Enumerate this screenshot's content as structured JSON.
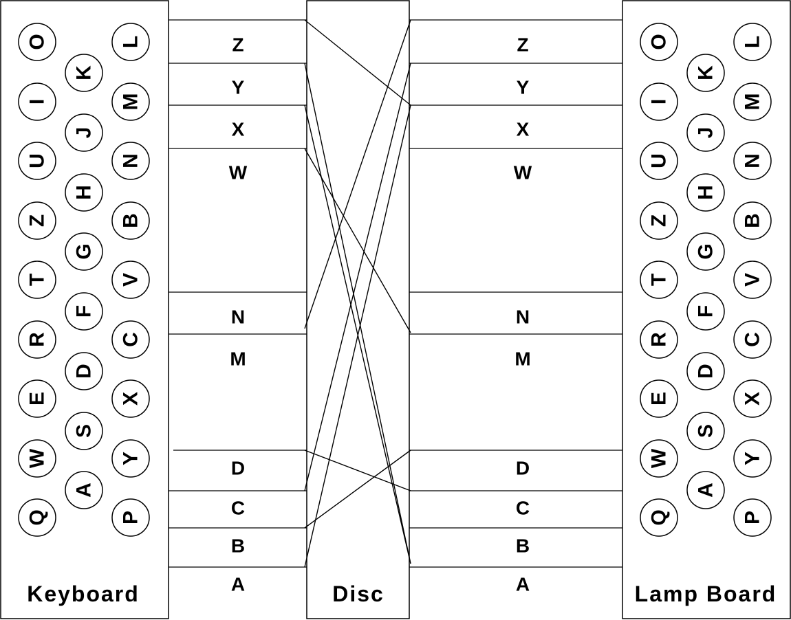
{
  "keyboard": {
    "title": "Keyboard",
    "col1": [
      "O",
      "I",
      "U",
      "Z",
      "T",
      "R",
      "E",
      "W",
      "Q"
    ],
    "col2": [
      "K",
      "J",
      "H",
      "G",
      "F",
      "D",
      "S",
      "A"
    ],
    "col3": [
      "L",
      "M",
      "N",
      "B",
      "V",
      "C",
      "X",
      "Y",
      "P"
    ]
  },
  "lampboard": {
    "title": "Lamp Board",
    "col1": [
      "O",
      "I",
      "U",
      "Z",
      "T",
      "R",
      "E",
      "W",
      "Q"
    ],
    "col2": [
      "K",
      "J",
      "H",
      "G",
      "F",
      "D",
      "S",
      "A"
    ],
    "col3": [
      "L",
      "M",
      "N",
      "B",
      "V",
      "C",
      "X",
      "Y",
      "P"
    ]
  },
  "disc": {
    "title": "Disc"
  },
  "wire_labels": [
    "Z",
    "Y",
    "X",
    "W",
    "N",
    "M",
    "D",
    "C",
    "B",
    "A"
  ],
  "wiring": [
    {
      "in": "Z",
      "out": "X"
    },
    {
      "in": "Y",
      "out": "A"
    },
    {
      "in": "X",
      "out": "A"
    },
    {
      "in": "W",
      "out": "M"
    },
    {
      "in": "N",
      "out": "Z"
    },
    {
      "in": "D",
      "out": "C"
    },
    {
      "in": "C",
      "out": "Y"
    },
    {
      "in": "B",
      "out": "D"
    },
    {
      "in": "A",
      "out": "X"
    }
  ]
}
